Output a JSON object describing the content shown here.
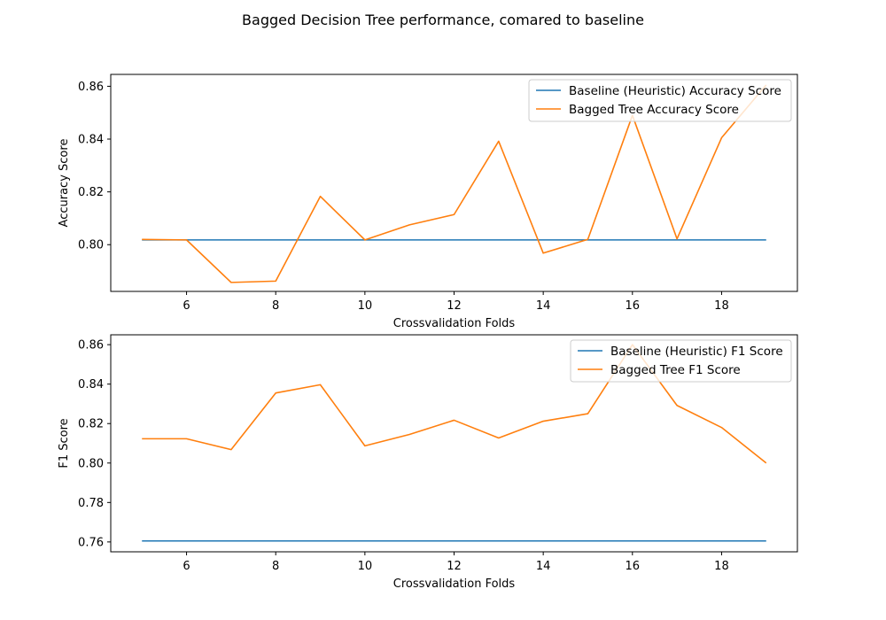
{
  "figure": {
    "suptitle": "Bagged Decision Tree performance, comared to baseline"
  },
  "chart_data": [
    {
      "type": "line",
      "xlabel": "Crossvalidation Folds",
      "ylabel": "Accuracy Score",
      "xlim": [
        4.3,
        19.7
      ],
      "ylim": [
        0.7823,
        0.8645
      ],
      "xticks": [
        6,
        8,
        10,
        12,
        14,
        16,
        18
      ],
      "yticks": [
        0.8,
        0.82,
        0.84,
        0.86
      ],
      "ytick_decimals": 2,
      "legend_position": "top-right",
      "x": [
        5,
        6,
        7,
        8,
        9,
        10,
        11,
        12,
        13,
        14,
        15,
        16,
        17,
        18,
        19
      ],
      "series": [
        {
          "name": "Baseline (Heuristic) Accuracy Score",
          "color": "#1f77b4",
          "values": [
            0.8018,
            0.8018,
            0.8018,
            0.8018,
            0.8018,
            0.8018,
            0.8018,
            0.8018,
            0.8018,
            0.8018,
            0.8018,
            0.8018,
            0.8018,
            0.8018,
            0.8018
          ]
        },
        {
          "name": "Bagged Tree Accuracy Score",
          "color": "#ff7f0e",
          "values": [
            0.802,
            0.8018,
            0.7857,
            0.7862,
            0.8183,
            0.8018,
            0.8075,
            0.8114,
            0.8392,
            0.7968,
            0.802,
            0.849,
            0.8022,
            0.8405,
            0.8605
          ]
        }
      ]
    },
    {
      "type": "line",
      "xlabel": "Crossvalidation Folds",
      "ylabel": "F1 Score",
      "xlim": [
        4.3,
        19.7
      ],
      "ylim": [
        0.755,
        0.865
      ],
      "xticks": [
        6,
        8,
        10,
        12,
        14,
        16,
        18
      ],
      "yticks": [
        0.76,
        0.78,
        0.8,
        0.82,
        0.84,
        0.86
      ],
      "ytick_decimals": 2,
      "legend_position": "top-right",
      "x": [
        5,
        6,
        7,
        8,
        9,
        10,
        11,
        12,
        13,
        14,
        15,
        16,
        17,
        18,
        19
      ],
      "series": [
        {
          "name": "Baseline (Heuristic) F1 Score",
          "color": "#1f77b4",
          "values": [
            0.7605,
            0.7605,
            0.7605,
            0.7605,
            0.7605,
            0.7605,
            0.7605,
            0.7605,
            0.7605,
            0.7605,
            0.7605,
            0.7605,
            0.7605,
            0.7605,
            0.7605
          ]
        },
        {
          "name": "Bagged Tree F1 Score",
          "color": "#ff7f0e",
          "values": [
            0.8123,
            0.8123,
            0.8068,
            0.8355,
            0.8397,
            0.8087,
            0.8145,
            0.8217,
            0.8127,
            0.8212,
            0.825,
            0.86,
            0.8292,
            0.818,
            0.8
          ]
        }
      ]
    }
  ]
}
